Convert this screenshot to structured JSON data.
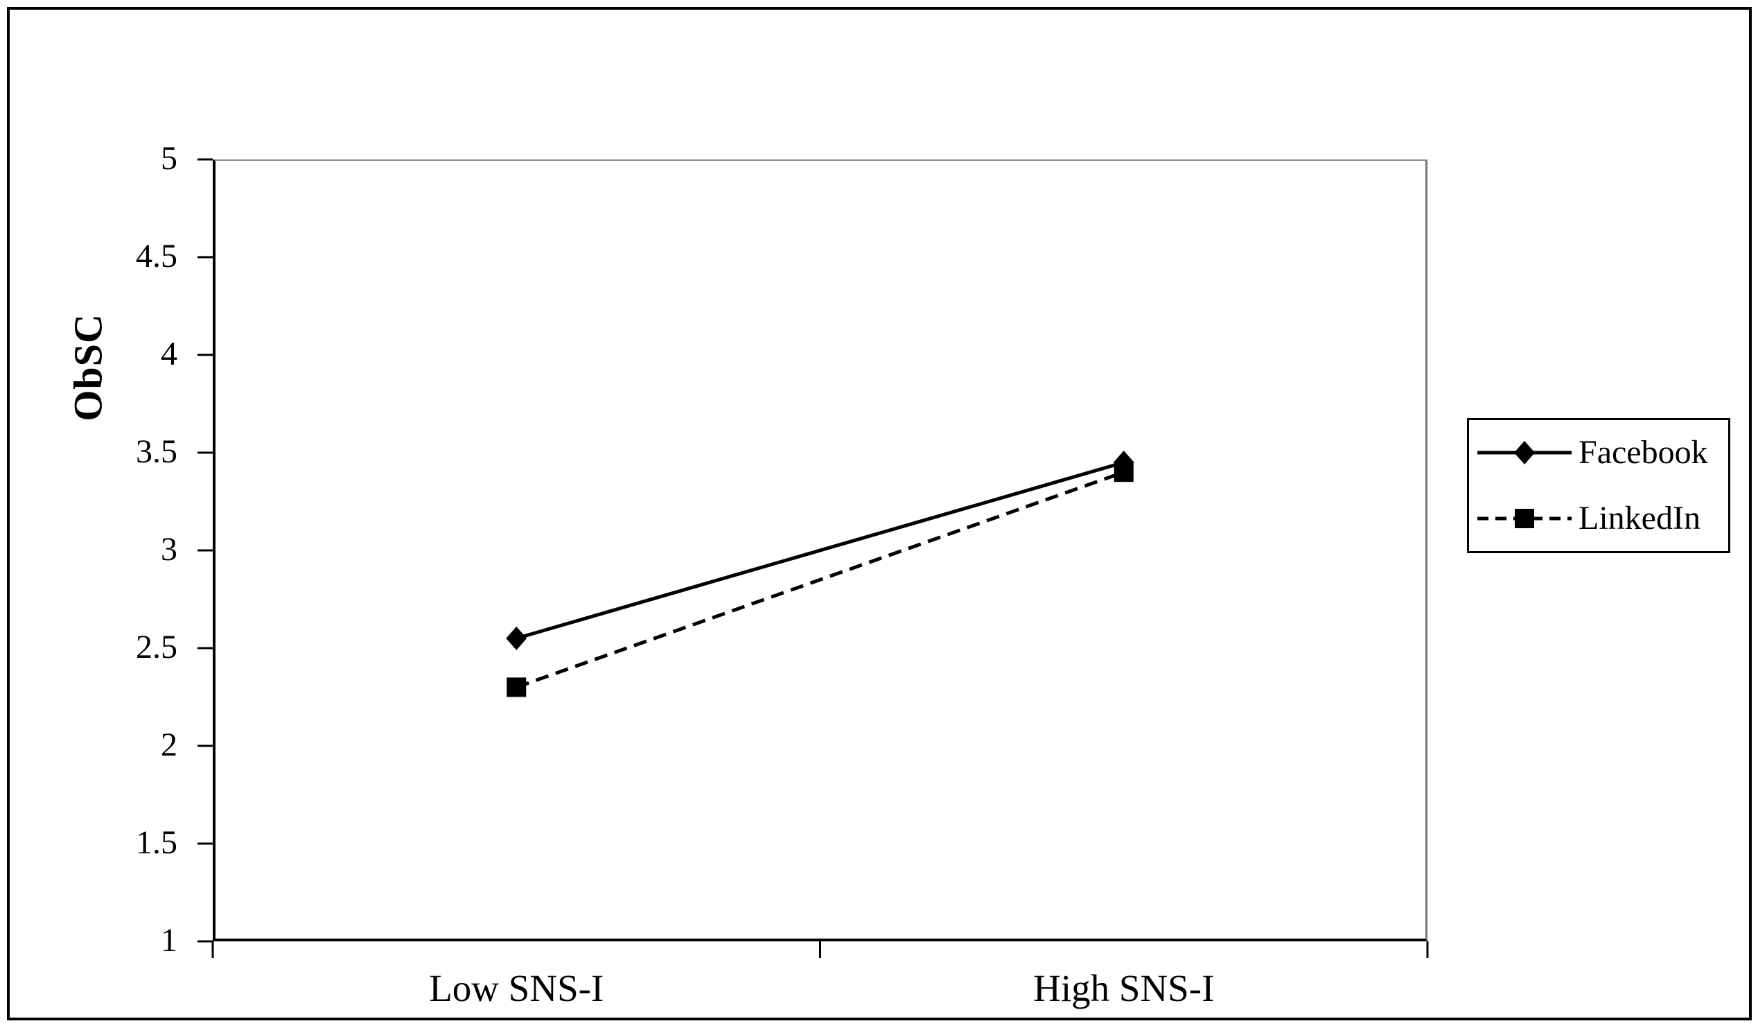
{
  "chart_data": {
    "type": "line",
    "title": "",
    "ylabel": "ObSC",
    "xlabel": "",
    "categories": [
      "Low SNS-I",
      "High SNS-I"
    ],
    "series": [
      {
        "name": "Facebook",
        "values": [
          2.55,
          3.45
        ],
        "line_style": "solid",
        "marker": "diamond",
        "color": "#000000"
      },
      {
        "name": "LinkedIn",
        "values": [
          2.3,
          3.4
        ],
        "line_style": "dashed",
        "marker": "square",
        "color": "#000000"
      }
    ],
    "ylim": [
      1,
      5
    ],
    "yticks": [
      5,
      4.5,
      4,
      3.5,
      3,
      2.5,
      2,
      1.5,
      1
    ],
    "ytick_step": 0.5,
    "grid": "off",
    "legend": {
      "position": "right",
      "entries": [
        "Facebook",
        "LinkedIn"
      ]
    }
  },
  "colors": {
    "foreground": "#000000",
    "background": "#ffffff",
    "plot_border_gray": "#8a8a8a"
  }
}
